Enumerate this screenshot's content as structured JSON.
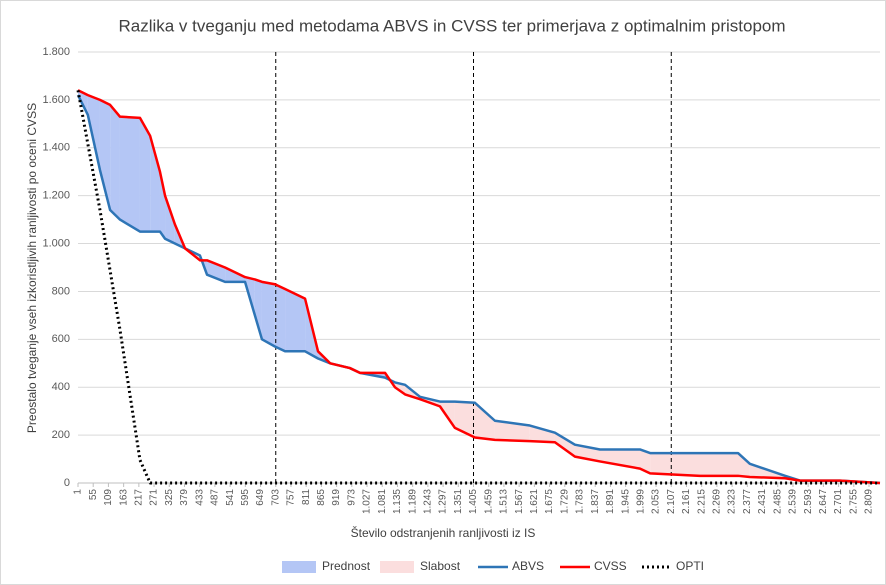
{
  "chart_data": {
    "type": "line",
    "title": "Razlika v tveganju med metodama ABVS in CVSS ter primerjava z optimalnim pristopom",
    "x_label": "Število odstranjenih ranljivosti iz IS",
    "y_label": "Preostalo tveganje vseh izkoristljivih ranljivosti po oceni CVSS",
    "xlim": [
      1,
      2848
    ],
    "ylim": [
      0,
      1800
    ],
    "xticks": [
      1,
      55,
      109,
      163,
      217,
      271,
      325,
      379,
      433,
      487,
      541,
      595,
      649,
      703,
      757,
      811,
      865,
      919,
      973,
      {
        "value": 1027,
        "label": "1.027"
      },
      {
        "value": 1081,
        "label": "1.081"
      },
      {
        "value": 1135,
        "label": "1.135"
      },
      {
        "value": 1189,
        "label": "1.189"
      },
      {
        "value": 1243,
        "label": "1.243"
      },
      {
        "value": 1297,
        "label": "1.297"
      },
      {
        "value": 1351,
        "label": "1.351"
      },
      {
        "value": 1405,
        "label": "1.405"
      },
      {
        "value": 1459,
        "label": "1.459"
      },
      {
        "value": 1513,
        "label": "1.513"
      },
      {
        "value": 1567,
        "label": "1.567"
      },
      {
        "value": 1621,
        "label": "1.621"
      },
      {
        "value": 1675,
        "label": "1.675"
      },
      {
        "value": 1729,
        "label": "1.729"
      },
      {
        "value": 1783,
        "label": "1.783"
      },
      {
        "value": 1837,
        "label": "1.837"
      },
      {
        "value": 1891,
        "label": "1.891"
      },
      {
        "value": 1945,
        "label": "1.945"
      },
      {
        "value": 1999,
        "label": "1.999"
      },
      {
        "value": 2053,
        "label": "2.053"
      },
      {
        "value": 2107,
        "label": "2.107"
      },
      {
        "value": 2161,
        "label": "2.161"
      },
      {
        "value": 2215,
        "label": "2.215"
      },
      {
        "value": 2269,
        "label": "2.269"
      },
      {
        "value": 2323,
        "label": "2.323"
      },
      {
        "value": 2377,
        "label": "2.377"
      },
      {
        "value": 2431,
        "label": "2.431"
      },
      {
        "value": 2485,
        "label": "2.485"
      },
      {
        "value": 2539,
        "label": "2.539"
      },
      {
        "value": 2593,
        "label": "2.593"
      },
      {
        "value": 2647,
        "label": "2.647"
      },
      {
        "value": 2701,
        "label": "2.701"
      },
      {
        "value": 2755,
        "label": "2.755"
      },
      {
        "value": 2809,
        "label": "2.809"
      }
    ],
    "yticks": [
      0,
      200,
      400,
      600,
      800,
      {
        "value": 1000,
        "label": "1.000"
      },
      {
        "value": 1200,
        "label": "1.200"
      },
      {
        "value": 1400,
        "label": "1.400"
      },
      {
        "value": 1600,
        "label": "1.600"
      },
      {
        "value": 1800,
        "label": "1.800"
      }
    ],
    "grid": true,
    "vlines": [
      703,
      1405,
      2107
    ],
    "fills": [
      {
        "name": "Prednost",
        "color": "#b4c6f5"
      },
      {
        "name": "Slabost",
        "color": "#fbdede"
      }
    ],
    "series": [
      {
        "name": "ABVS",
        "color": "#2e75b6",
        "x": [
          1,
          36,
          79,
          115,
          150,
          221,
          257,
          292,
          310,
          345,
          381,
          434,
          459,
          523,
          594,
          629,
          654,
          700,
          736,
          807,
          853,
          896,
          966,
          1002,
          1091,
          1126,
          1162,
          1215,
          1286,
          1339,
          1410,
          1481,
          1605,
          1694,
          1765,
          1854,
          1996,
          2032,
          2209,
          2344,
          2386,
          2511,
          2564,
          2706,
          2848
        ],
        "values": [
          1620,
          1537,
          1307,
          1140,
          1100,
          1050,
          1050,
          1050,
          1020,
          1000,
          980,
          950,
          870,
          840,
          840,
          700,
          600,
          570,
          550,
          550,
          520,
          500,
          480,
          460,
          440,
          420,
          410,
          360,
          340,
          340,
          335,
          260,
          240,
          210,
          160,
          140,
          140,
          125,
          125,
          125,
          80,
          30,
          10,
          10,
          0
        ]
      },
      {
        "name": "CVSS",
        "color": "#ff0000",
        "x": [
          1,
          36,
          79,
          115,
          150,
          221,
          257,
          292,
          310,
          345,
          381,
          434,
          459,
          523,
          594,
          629,
          654,
          700,
          736,
          807,
          853,
          896,
          966,
          1002,
          1091,
          1126,
          1162,
          1215,
          1286,
          1339,
          1410,
          1481,
          1605,
          1694,
          1765,
          1854,
          1996,
          2032,
          2209,
          2344,
          2386,
          2511,
          2564,
          2706,
          2848
        ],
        "values": [
          1640,
          1620,
          1600,
          1579,
          1530,
          1525,
          1450,
          1300,
          1200,
          1080,
          980,
          930,
          930,
          900,
          860,
          850,
          840,
          830,
          810,
          770,
          550,
          500,
          480,
          460,
          460,
          400,
          370,
          350,
          320,
          230,
          190,
          180,
          175,
          170,
          110,
          90,
          60,
          40,
          30,
          30,
          25,
          20,
          10,
          10,
          0
        ]
      },
      {
        "name": "OPTI",
        "color": "#000000",
        "dotted": true,
        "x": [
          1,
          79,
          150,
          221,
          257,
          2848
        ],
        "values": [
          1640,
          1140,
          640,
          96,
          0,
          0
        ]
      }
    ]
  }
}
